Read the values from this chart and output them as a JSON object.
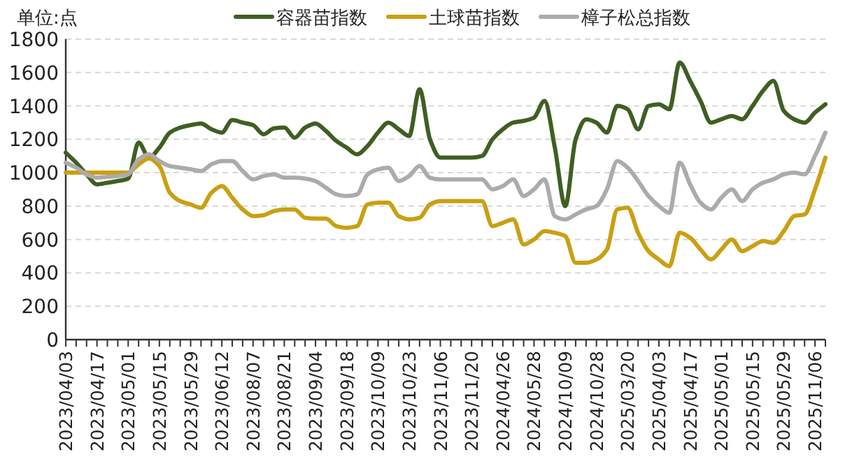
{
  "chart_data": {
    "type": "line",
    "ylabel": "单位:点",
    "categories": [
      "2023/04/03",
      null,
      null,
      "2023/04/17",
      null,
      null,
      "2023/05/01",
      null,
      null,
      "2023/05/15",
      null,
      null,
      "2023/05/29",
      null,
      null,
      "2023/06/12",
      null,
      null,
      "2023/08/07",
      null,
      null,
      "2023/08/21",
      null,
      null,
      "2023/09/04",
      null,
      null,
      "2023/09/18",
      null,
      null,
      "2023/10/09",
      null,
      null,
      "2023/10/23",
      null,
      null,
      "2023/11/06",
      null,
      null,
      "2023/11/20",
      null,
      null,
      "2024/04/26",
      null,
      null,
      "2024/05/28",
      null,
      null,
      "2024/10/09",
      null,
      null,
      "2024/10/28",
      null,
      null,
      "2025/03/20",
      null,
      null,
      "2025/04/03",
      null,
      null,
      "2025/04/17",
      null,
      null,
      "2025/05/01",
      null,
      null,
      "2025/05/15",
      null,
      null,
      "2025/05/29",
      null,
      null,
      "2025/11/06",
      null
    ],
    "series": [
      {
        "name": "容器苗指数",
        "color": "#3f5f22",
        "values": [
          1120,
          1060,
          990,
          930,
          940,
          950,
          965,
          1180,
          1090,
          1150,
          1240,
          1270,
          1285,
          1295,
          1260,
          1240,
          1315,
          1300,
          1285,
          1230,
          1265,
          1270,
          1210,
          1270,
          1295,
          1250,
          1190,
          1150,
          1110,
          1160,
          1240,
          1300,
          1260,
          1220,
          1500,
          1200,
          1090,
          1090,
          1090,
          1090,
          1100,
          1200,
          1260,
          1300,
          1310,
          1330,
          1430,
          1150,
          800,
          1200,
          1320,
          1300,
          1240,
          1400,
          1380,
          1260,
          1400,
          1410,
          1380,
          1660,
          1550,
          1430,
          1300,
          1320,
          1340,
          1320,
          1400,
          1490,
          1550,
          1370,
          1320,
          1300,
          1360,
          1410
        ]
      },
      {
        "name": "土球苗指数",
        "color": "#c9a012",
        "values": [
          1000,
          1000,
          1000,
          1000,
          1000,
          1000,
          1000,
          1050,
          1085,
          1040,
          880,
          830,
          810,
          790,
          880,
          920,
          850,
          780,
          740,
          745,
          770,
          780,
          780,
          730,
          725,
          725,
          680,
          670,
          680,
          810,
          820,
          820,
          740,
          720,
          730,
          810,
          830,
          830,
          830,
          830,
          830,
          680,
          700,
          720,
          570,
          600,
          650,
          640,
          620,
          460,
          460,
          480,
          540,
          780,
          790,
          640,
          530,
          480,
          440,
          640,
          610,
          540,
          480,
          540,
          600,
          530,
          560,
          590,
          580,
          650,
          740,
          750,
          900,
          1090
        ]
      },
      {
        "name": "樟子松总指数",
        "color": "#ababab",
        "values": [
          1060,
          1030,
          990,
          970,
          975,
          980,
          990,
          1080,
          1110,
          1070,
          1040,
          1030,
          1020,
          1010,
          1050,
          1070,
          1070,
          1010,
          960,
          980,
          990,
          970,
          970,
          965,
          950,
          910,
          870,
          860,
          870,
          990,
          1020,
          1030,
          950,
          980,
          1040,
          970,
          960,
          960,
          960,
          960,
          960,
          900,
          920,
          960,
          860,
          900,
          960,
          740,
          720,
          750,
          780,
          800,
          900,
          1070,
          1030,
          950,
          860,
          800,
          760,
          1060,
          930,
          820,
          780,
          850,
          900,
          830,
          900,
          940,
          960,
          990,
          1000,
          990,
          1100,
          1240
        ]
      }
    ],
    "ylim": [
      0,
      1800
    ],
    "yticks": [
      0,
      200,
      400,
      600,
      800,
      1000,
      1200,
      1400,
      1600,
      1800
    ],
    "grid": "y",
    "legend": "top",
    "marker": "none",
    "line_style": "solid"
  }
}
